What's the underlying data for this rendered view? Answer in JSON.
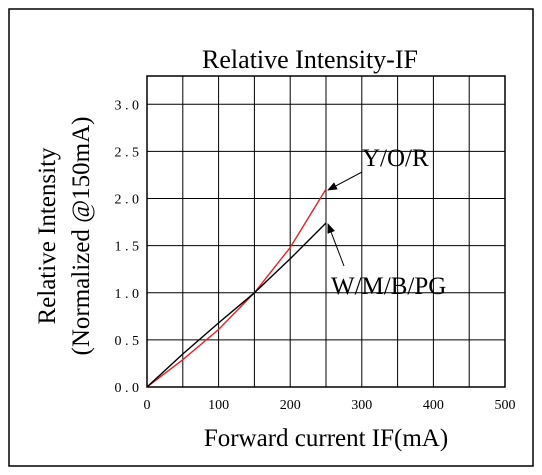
{
  "chart_data": {
    "type": "line",
    "title": "Relative Intensity-IF",
    "xlabel": "Forward current IF(mA)",
    "ylabel_line1": "Relative  Intensity",
    "ylabel_line2": "(Normalized @150mA)",
    "xlim": [
      0,
      500
    ],
    "ylim": [
      0,
      3.3
    ],
    "x_ticks": [
      0,
      50,
      100,
      150,
      200,
      250,
      300,
      350,
      400,
      450,
      500
    ],
    "x_tick_labels": [
      "0",
      "100",
      "200",
      "300",
      "400",
      "500"
    ],
    "x_tick_label_values": [
      0,
      100,
      200,
      300,
      400,
      500
    ],
    "y_ticks": [
      0,
      0.5,
      1.0,
      1.5,
      2.0,
      2.5,
      3.0
    ],
    "y_tick_labels": [
      "0.0",
      "0.5",
      "1.0",
      "1.5",
      "2.0",
      "2.5",
      "3.0"
    ],
    "grid": true,
    "series": [
      {
        "name": "Y/O/R",
        "color": "#e8202a",
        "points": [
          [
            0,
            0
          ],
          [
            50,
            0.29
          ],
          [
            100,
            0.61
          ],
          [
            150,
            1.0
          ],
          [
            200,
            1.48
          ],
          [
            250,
            2.1
          ]
        ]
      },
      {
        "name": "W/M/B/PG",
        "color": "#000000",
        "points": [
          [
            0,
            0
          ],
          [
            50,
            0.35
          ],
          [
            100,
            0.68
          ],
          [
            150,
            1.0
          ],
          [
            200,
            1.36
          ],
          [
            250,
            1.74
          ]
        ]
      }
    ],
    "annotations": [
      {
        "text": "Y/O/R",
        "series": 0,
        "arrow_to": [
          250,
          2.1
        ]
      },
      {
        "text": "W/M/B/PG",
        "series": 1,
        "arrow_to": [
          250,
          1.74
        ]
      }
    ]
  }
}
